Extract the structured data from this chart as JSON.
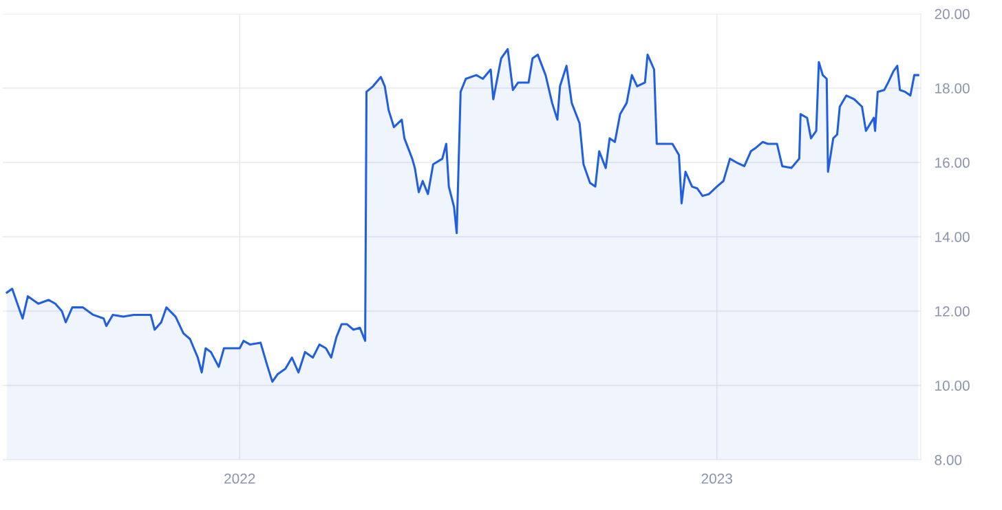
{
  "chart_data": {
    "type": "area",
    "x": [
      "2021-07-07",
      "2021-07-11",
      "2021-07-15",
      "2021-07-19",
      "2021-07-23",
      "2021-07-31",
      "2021-08-08",
      "2021-08-13",
      "2021-08-18",
      "2021-08-21",
      "2021-08-26",
      "2021-09-03",
      "2021-09-11",
      "2021-09-19",
      "2021-09-21",
      "2021-09-26",
      "2021-10-04",
      "2021-10-12",
      "2021-10-20",
      "2021-10-25",
      "2021-10-28",
      "2021-11-02",
      "2021-11-06",
      "2021-11-13",
      "2021-11-19",
      "2021-11-24",
      "2021-11-30",
      "2021-12-03",
      "2021-12-06",
      "2021-12-10",
      "2021-12-16",
      "2021-12-20",
      "2021-12-26",
      "2022-01-01",
      "2022-01-04",
      "2022-01-09",
      "2022-01-17",
      "2022-01-22",
      "2022-01-26",
      "2022-01-30",
      "2022-02-05",
      "2022-02-10",
      "2022-02-15",
      "2022-02-20",
      "2022-02-26",
      "2022-03-03",
      "2022-03-08",
      "2022-03-12",
      "2022-03-16",
      "2022-03-20",
      "2022-03-24",
      "2022-03-29",
      "2022-04-03",
      "2022-04-07",
      "2022-04-08",
      "2022-04-13",
      "2022-04-19",
      "2022-04-22",
      "2022-04-25",
      "2022-04-29",
      "2022-05-05",
      "2022-05-07",
      "2022-05-13",
      "2022-05-15",
      "2022-05-18",
      "2022-05-21",
      "2022-05-25",
      "2022-05-29",
      "2022-06-05",
      "2022-06-08",
      "2022-06-10",
      "2022-06-14",
      "2022-06-16",
      "2022-06-19",
      "2022-06-23",
      "2022-07-01",
      "2022-07-06",
      "2022-07-12",
      "2022-07-14",
      "2022-07-20",
      "2022-07-25",
      "2022-07-29",
      "2022-08-02",
      "2022-08-10",
      "2022-08-13",
      "2022-08-17",
      "2022-08-23",
      "2022-08-28",
      "2022-09-01",
      "2022-09-03",
      "2022-09-08",
      "2022-09-12",
      "2022-09-18",
      "2022-09-21",
      "2022-09-26",
      "2022-09-30",
      "2022-10-03",
      "2022-10-08",
      "2022-10-11",
      "2022-10-15",
      "2022-10-19",
      "2022-10-24",
      "2022-10-28",
      "2022-11-01",
      "2022-11-07",
      "2022-11-09",
      "2022-11-14",
      "2022-11-16",
      "2022-11-20",
      "2022-11-28",
      "2022-12-03",
      "2022-12-05",
      "2022-12-08",
      "2022-12-13",
      "2022-12-17",
      "2022-12-21",
      "2022-12-26",
      "2023-01-01",
      "2023-01-06",
      "2023-01-11",
      "2023-01-16",
      "2023-01-22",
      "2023-01-27",
      "2023-01-31",
      "2023-02-05",
      "2023-02-09",
      "2023-02-16",
      "2023-02-20",
      "2023-02-27",
      "2023-03-05",
      "2023-03-06",
      "2023-03-11",
      "2023-03-14",
      "2023-03-18",
      "2023-03-20",
      "2023-03-23",
      "2023-03-26",
      "2023-03-27",
      "2023-03-31",
      "2023-04-03",
      "2023-04-05",
      "2023-04-10",
      "2023-04-16",
      "2023-04-22",
      "2023-04-25",
      "2023-05-01",
      "2023-05-02",
      "2023-05-04",
      "2023-05-09",
      "2023-05-12",
      "2023-05-16",
      "2023-05-19",
      "2023-05-21",
      "2023-05-25",
      "2023-05-29",
      "2023-06-01",
      "2023-06-04"
    ],
    "series": [
      {
        "color": "#1f5fe0",
        "values": [
          12.5,
          12.6,
          12.2,
          11.8,
          12.4,
          12.2,
          12.3,
          12.2,
          12.0,
          11.7,
          12.1,
          12.1,
          11.9,
          11.8,
          11.6,
          11.9,
          11.85,
          11.9,
          11.9,
          11.9,
          11.5,
          11.7,
          12.1,
          11.85,
          11.4,
          11.25,
          10.75,
          10.35,
          11.0,
          10.9,
          10.5,
          11.0,
          11.0,
          11.0,
          11.2,
          11.1,
          11.15,
          10.55,
          10.1,
          10.3,
          10.45,
          10.75,
          10.35,
          10.9,
          10.75,
          11.1,
          11.0,
          10.75,
          11.3,
          11.65,
          11.65,
          11.5,
          11.55,
          11.2,
          17.9,
          18.05,
          18.3,
          18.05,
          17.4,
          16.95,
          17.15,
          16.65,
          16.1,
          15.85,
          15.2,
          15.5,
          15.15,
          15.95,
          16.1,
          16.5,
          15.35,
          14.8,
          14.1,
          17.9,
          18.25,
          18.35,
          18.25,
          18.5,
          17.7,
          18.8,
          19.05,
          17.95,
          18.15,
          18.15,
          18.8,
          18.9,
          18.35,
          17.6,
          17.15,
          18.05,
          18.6,
          17.6,
          17.05,
          15.95,
          15.45,
          15.35,
          16.3,
          15.85,
          16.65,
          16.55,
          17.3,
          17.6,
          18.35,
          18.05,
          18.15,
          18.9,
          18.5,
          16.5,
          16.5,
          16.5,
          16.2,
          14.9,
          15.75,
          15.35,
          15.3,
          15.1,
          15.15,
          15.35,
          15.5,
          16.1,
          16.0,
          15.9,
          16.3,
          16.4,
          16.55,
          16.5,
          16.5,
          15.9,
          15.85,
          16.1,
          17.3,
          17.2,
          16.65,
          16.85,
          18.7,
          18.35,
          18.25,
          15.75,
          16.65,
          16.75,
          17.5,
          17.8,
          17.7,
          17.5,
          16.85,
          17.2,
          16.85,
          17.9,
          17.95,
          18.15,
          18.45,
          18.6,
          17.95,
          17.9,
          17.8,
          18.35,
          18.35
        ]
      }
    ],
    "xlim": [
      "2021-07-04",
      "2023-06-06"
    ],
    "xticks": [
      {
        "value": "2022-01-01",
        "label": "2022"
      },
      {
        "value": "2023-01-01",
        "label": "2023"
      }
    ],
    "ylim": [
      8,
      20
    ],
    "yticks": [
      {
        "value": 8,
        "label": "8.00"
      },
      {
        "value": 10,
        "label": "10.00"
      },
      {
        "value": 12,
        "label": "12.00"
      },
      {
        "value": 14,
        "label": "14.00"
      },
      {
        "value": 16,
        "label": "16.00"
      },
      {
        "value": 18,
        "label": "18.00"
      },
      {
        "value": 20,
        "label": "20.00"
      }
    ],
    "grid": true
  }
}
